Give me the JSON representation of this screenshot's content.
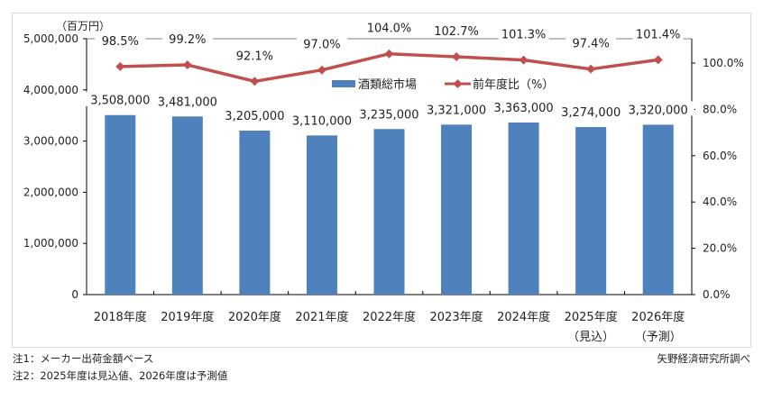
{
  "chart_data": {
    "type": "bar+line",
    "title": "",
    "unit_label": "（百万円）",
    "categories": [
      "2018年度",
      "2019年度",
      "2020年度",
      "2021年度",
      "2022年度",
      "2023年度",
      "2024年度",
      "2025年度",
      "2026年度"
    ],
    "category_sublabels": [
      "",
      "",
      "",
      "",
      "",
      "",
      "",
      "（見込）",
      "（予測）"
    ],
    "series": [
      {
        "name": "酒類総市場",
        "type": "bar",
        "axis": "left",
        "color": "#4f81bd",
        "values": [
          3508000,
          3481000,
          3205000,
          3110000,
          3235000,
          3321000,
          3363000,
          3274000,
          3320000
        ],
        "labels": [
          "3,508,000",
          "3,481,000",
          "3,205,000",
          "3,110,000",
          "3,235,000",
          "3,321,000",
          "3,363,000",
          "3,274,000",
          "3,320,000"
        ]
      },
      {
        "name": "前年度比（%）",
        "type": "line",
        "axis": "right",
        "color": "#c0504d",
        "values": [
          98.5,
          99.2,
          92.1,
          97.0,
          104.0,
          102.7,
          101.3,
          97.4,
          101.4
        ],
        "labels": [
          "98.5%",
          "99.2%",
          "92.1%",
          "97.0%",
          "104.0%",
          "102.7%",
          "101.3%",
          "97.4%",
          "101.4%"
        ]
      }
    ],
    "left_axis": {
      "min": 0,
      "max": 5000000,
      "ticks": [
        "0",
        "1,000,000",
        "2,000,000",
        "3,000,000",
        "4,000,000",
        "5,000,000"
      ]
    },
    "right_axis": {
      "min": 0,
      "max": 110,
      "ticks": [
        "0.0%",
        "20.0%",
        "40.0%",
        "60.0%",
        "80.0%",
        "100.0%"
      ]
    },
    "legend_position": "inside-top-center",
    "grid": false
  },
  "notes": [
    "注1：メーカー出荷金額ベース",
    "注2：2025年度は見込値、2026年度は予測値"
  ],
  "source": "矢野経済研究所調べ"
}
